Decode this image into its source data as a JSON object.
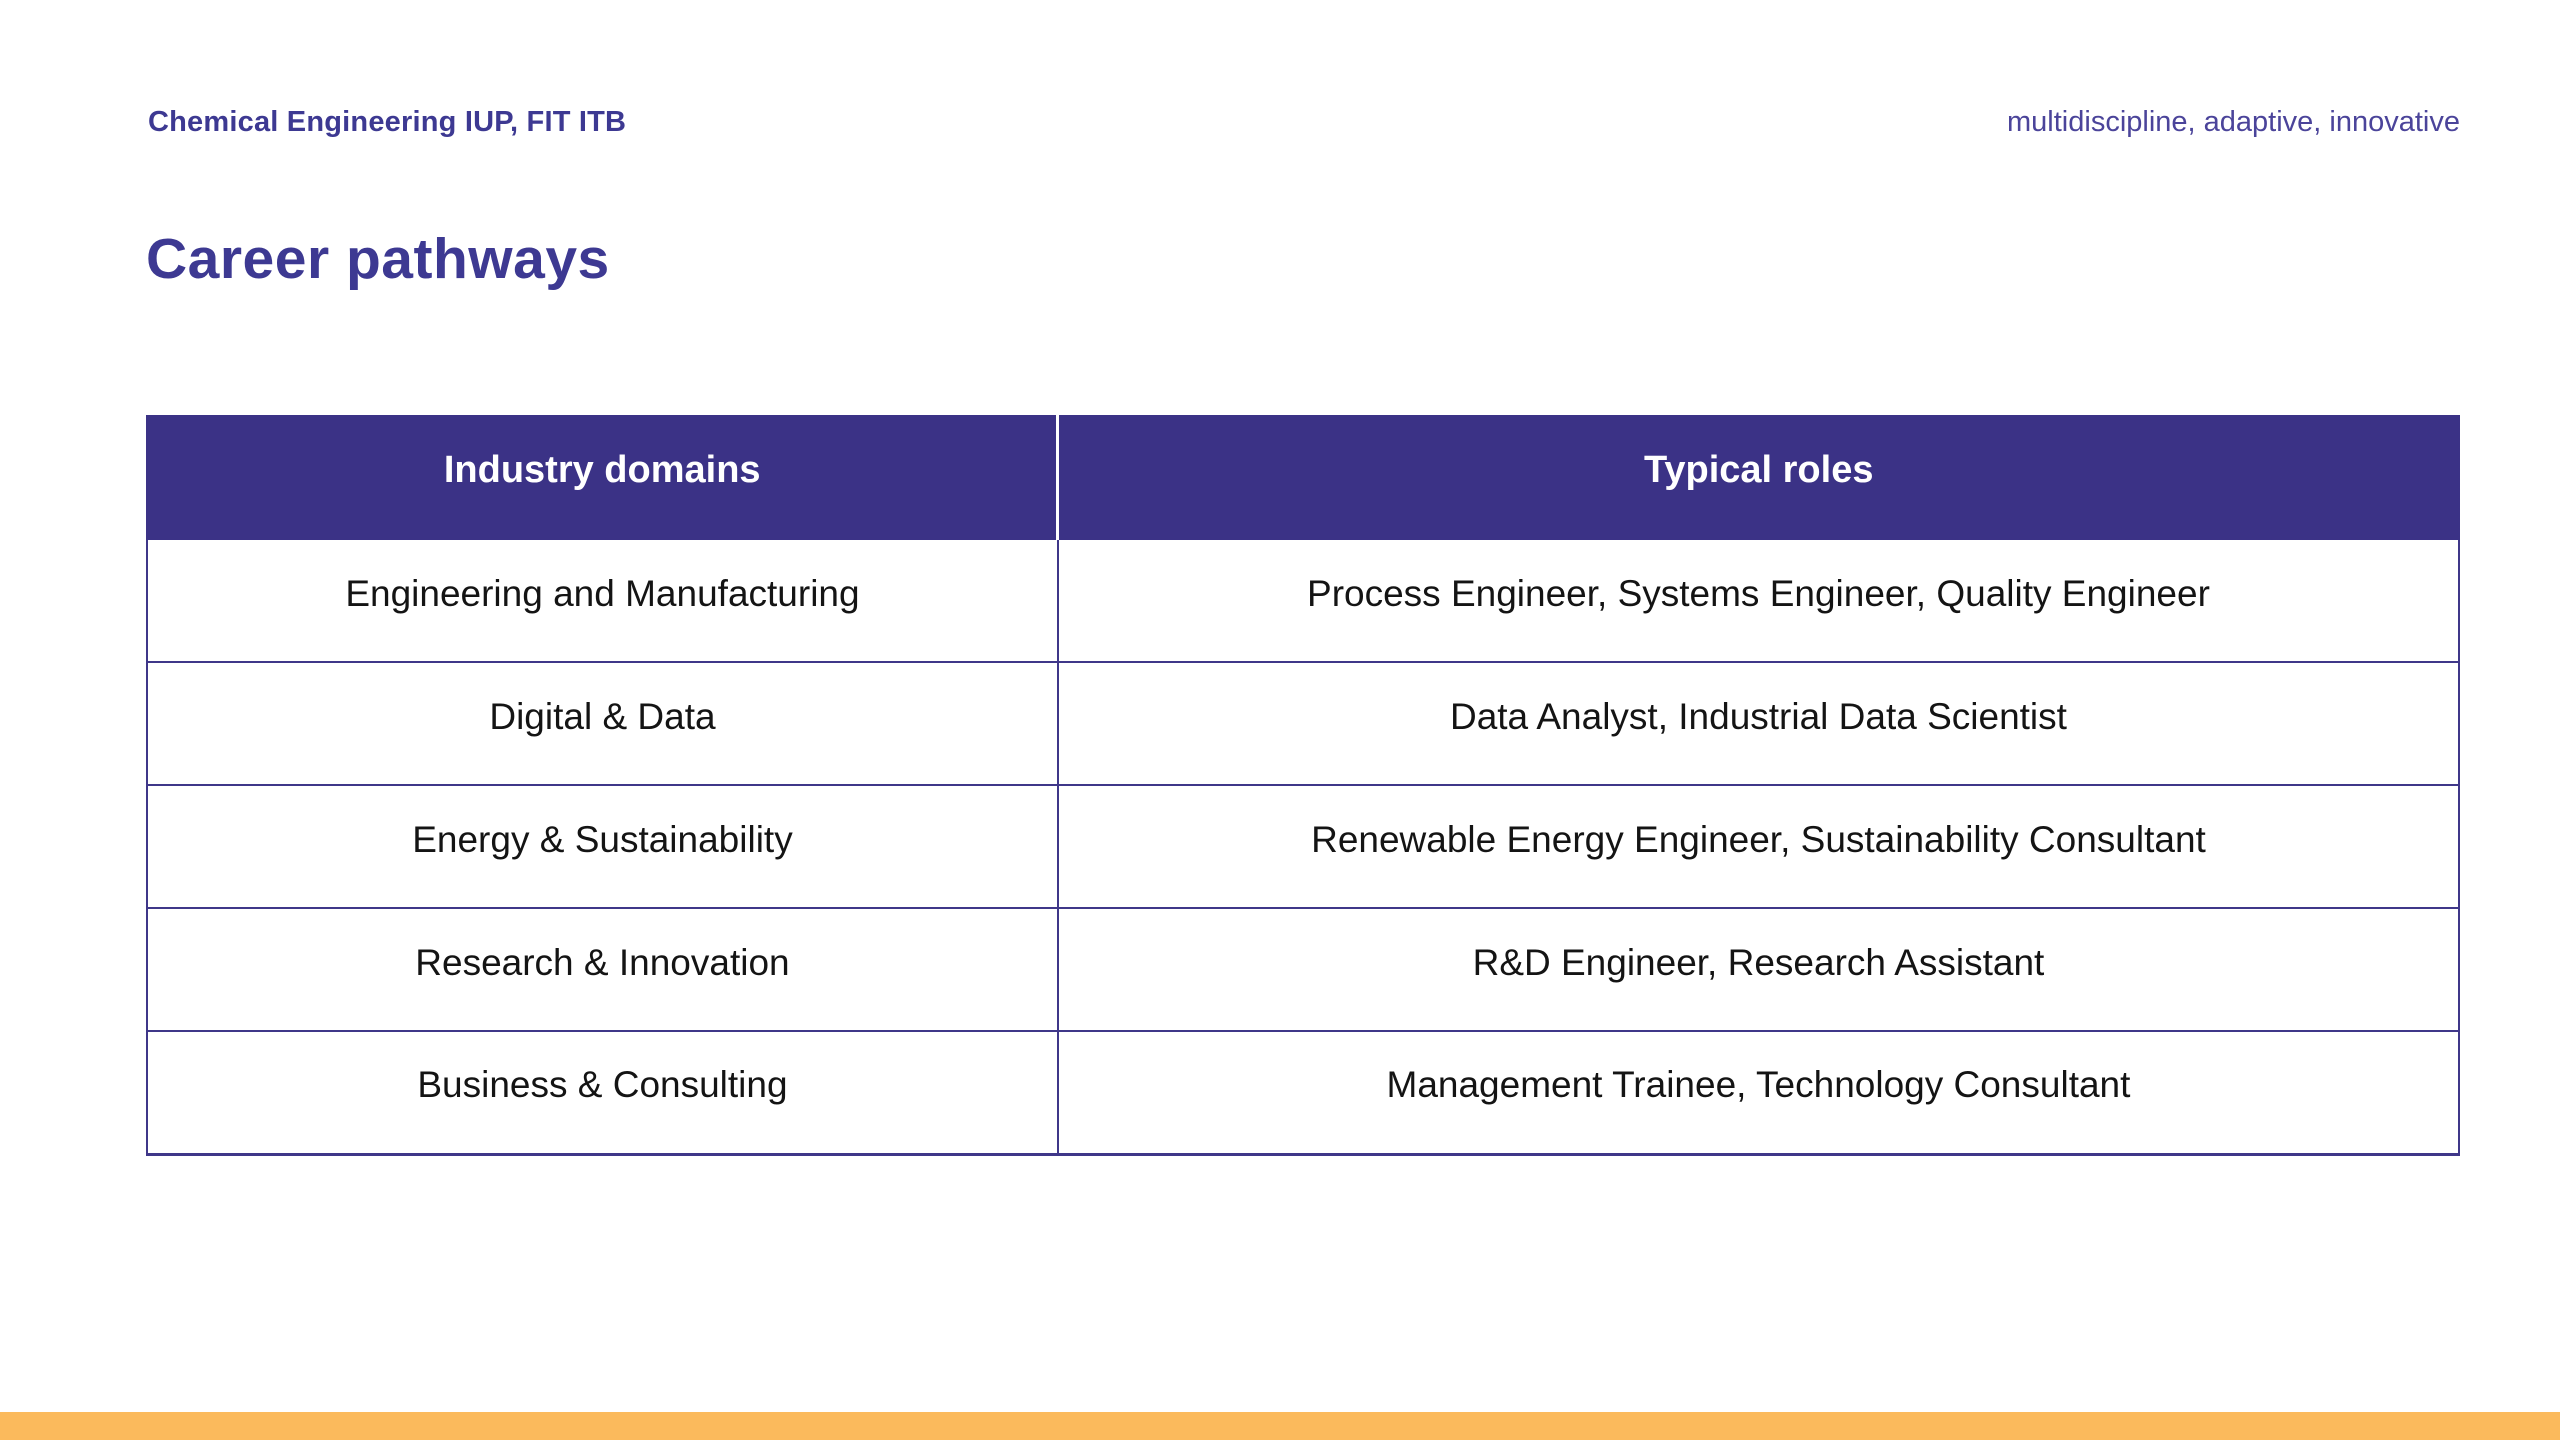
{
  "colors": {
    "primary_purple": "#3d3992",
    "table_header_bg": "#3b3286",
    "table_border": "#3f3789",
    "header_divider": "#ffffff",
    "body_text": "#141414",
    "accent_bar_orange": "#fbba5c",
    "background": "#ffffff"
  },
  "header": {
    "left_text": "Chemical Engineering IUP, FIT ITB",
    "right_text": "multidiscipline, adaptive, innovative"
  },
  "title": "Career pathways",
  "table": {
    "columns": {
      "domains": "Industry domains",
      "roles": "Typical roles"
    },
    "rows": [
      {
        "domain": "Engineering and Manufacturing",
        "roles": "Process Engineer, Systems Engineer, Quality Engineer"
      },
      {
        "domain": "Digital & Data",
        "roles": "Data Analyst, Industrial Data Scientist"
      },
      {
        "domain": "Energy & Sustainability",
        "roles": "Renewable Energy Engineer, Sustainability Consultant"
      },
      {
        "domain": "Research & Innovation",
        "roles": "R&D Engineer, Research Assistant"
      },
      {
        "domain": "Business & Consulting",
        "roles": "Management Trainee, Technology Consultant"
      }
    ]
  }
}
